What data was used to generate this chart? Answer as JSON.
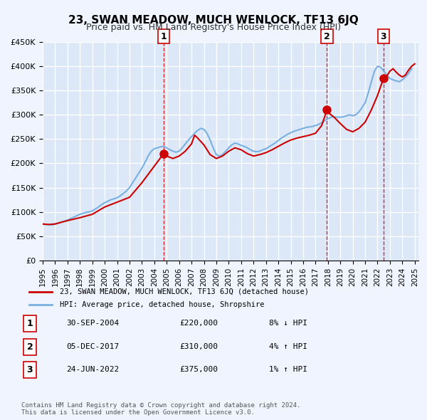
{
  "title": "23, SWAN MEADOW, MUCH WENLOCK, TF13 6JQ",
  "subtitle": "Price paid vs. HM Land Registry's House Price Index (HPI)",
  "hpi_label": "HPI: Average price, detached house, Shropshire",
  "property_label": "23, SWAN MEADOW, MUCH WENLOCK, TF13 6JQ (detached house)",
  "ylabel": "",
  "ylim": [
    0,
    450000
  ],
  "yticks": [
    0,
    50000,
    100000,
    150000,
    200000,
    250000,
    300000,
    350000,
    400000,
    450000
  ],
  "ytick_labels": [
    "£0",
    "£50K",
    "£100K",
    "£150K",
    "£200K",
    "£250K",
    "£300K",
    "£350K",
    "£400K",
    "£450K"
  ],
  "xlim_start": 1995.0,
  "xlim_end": 2025.3,
  "xticks": [
    1995,
    1996,
    1997,
    1998,
    1999,
    2000,
    2001,
    2002,
    2003,
    2004,
    2005,
    2006,
    2007,
    2008,
    2009,
    2010,
    2011,
    2012,
    2013,
    2014,
    2015,
    2016,
    2017,
    2018,
    2019,
    2020,
    2021,
    2022,
    2023,
    2024,
    2025
  ],
  "bg_color": "#f0f4ff",
  "plot_bg_color": "#dce8f8",
  "grid_color": "#ffffff",
  "hpi_color": "#7ab0e0",
  "price_color": "#cc0000",
  "marker_color": "#cc0000",
  "vline_color": "#cc0000",
  "transactions": [
    {
      "num": 1,
      "date": "30-SEP-2004",
      "price": 220000,
      "pct": "8%",
      "direction": "↓",
      "year": 2004.75
    },
    {
      "num": 2,
      "date": "05-DEC-2017",
      "price": 310000,
      "pct": "4%",
      "direction": "↑",
      "year": 2017.92
    },
    {
      "num": 3,
      "date": "24-JUN-2022",
      "price": 375000,
      "pct": "1%",
      "direction": "↑",
      "year": 2022.48
    }
  ],
  "footnote": "Contains HM Land Registry data © Crown copyright and database right 2024.\nThis data is licensed under the Open Government Licence v3.0.",
  "hpi_data": {
    "years": [
      1995.0,
      1995.25,
      1995.5,
      1995.75,
      1996.0,
      1996.25,
      1996.5,
      1996.75,
      1997.0,
      1997.25,
      1997.5,
      1997.75,
      1998.0,
      1998.25,
      1998.5,
      1998.75,
      1999.0,
      1999.25,
      1999.5,
      1999.75,
      2000.0,
      2000.25,
      2000.5,
      2000.75,
      2001.0,
      2001.25,
      2001.5,
      2001.75,
      2002.0,
      2002.25,
      2002.5,
      2002.75,
      2003.0,
      2003.25,
      2003.5,
      2003.75,
      2004.0,
      2004.25,
      2004.5,
      2004.75,
      2005.0,
      2005.25,
      2005.5,
      2005.75,
      2006.0,
      2006.25,
      2006.5,
      2006.75,
      2007.0,
      2007.25,
      2007.5,
      2007.75,
      2008.0,
      2008.25,
      2008.5,
      2008.75,
      2009.0,
      2009.25,
      2009.5,
      2009.75,
      2010.0,
      2010.25,
      2010.5,
      2010.75,
      2011.0,
      2011.25,
      2011.5,
      2011.75,
      2012.0,
      2012.25,
      2012.5,
      2012.75,
      2013.0,
      2013.25,
      2013.5,
      2013.75,
      2014.0,
      2014.25,
      2014.5,
      2014.75,
      2015.0,
      2015.25,
      2015.5,
      2015.75,
      2016.0,
      2016.25,
      2016.5,
      2016.75,
      2017.0,
      2017.25,
      2017.5,
      2017.75,
      2018.0,
      2018.25,
      2018.5,
      2018.75,
      2019.0,
      2019.25,
      2019.5,
      2019.75,
      2020.0,
      2020.25,
      2020.5,
      2020.75,
      2021.0,
      2021.25,
      2021.5,
      2021.75,
      2022.0,
      2022.25,
      2022.5,
      2022.75,
      2023.0,
      2023.25,
      2023.5,
      2023.75,
      2024.0,
      2024.25,
      2024.5,
      2024.75
    ],
    "values": [
      75000,
      74000,
      73500,
      73000,
      75000,
      77000,
      79000,
      81000,
      83000,
      86000,
      89000,
      92000,
      95000,
      97000,
      99000,
      100000,
      102000,
      106000,
      110000,
      115000,
      119000,
      122000,
      125000,
      127000,
      129000,
      133000,
      138000,
      143000,
      150000,
      160000,
      170000,
      180000,
      190000,
      202000,
      215000,
      225000,
      230000,
      232000,
      234000,
      235000,
      232000,
      228000,
      225000,
      223000,
      225000,
      232000,
      240000,
      248000,
      255000,
      262000,
      268000,
      272000,
      270000,
      262000,
      248000,
      232000,
      218000,
      215000,
      218000,
      225000,
      232000,
      238000,
      242000,
      240000,
      237000,
      235000,
      232000,
      228000,
      225000,
      224000,
      225000,
      228000,
      230000,
      234000,
      238000,
      242000,
      247000,
      252000,
      256000,
      260000,
      263000,
      266000,
      268000,
      270000,
      272000,
      274000,
      275000,
      276000,
      278000,
      280000,
      284000,
      288000,
      292000,
      295000,
      296000,
      295000,
      295000,
      296000,
      298000,
      300000,
      298000,
      300000,
      306000,
      315000,
      325000,
      345000,
      368000,
      390000,
      400000,
      398000,
      390000,
      382000,
      375000,
      372000,
      370000,
      368000,
      372000,
      378000,
      385000,
      395000
    ]
  },
  "price_line_data": {
    "segments": [
      {
        "years": [
          1995.0,
          1995.5,
          1996.0,
          1997.0,
          1998.0,
          1999.0,
          2000.0,
          2001.0,
          2002.0,
          2003.0,
          2004.75
        ],
        "values": [
          75000,
          74000,
          75000,
          82000,
          88000,
          95000,
          110000,
          120000,
          130000,
          160000,
          220000
        ]
      },
      {
        "years": [
          2004.75,
          2005.0,
          2005.5,
          2006.0,
          2006.5,
          2007.0,
          2007.25,
          2007.5,
          2008.0,
          2008.5,
          2009.0,
          2009.5,
          2010.0,
          2010.5,
          2011.0,
          2011.5,
          2012.0,
          2012.5,
          2013.0,
          2013.5,
          2014.0,
          2014.5,
          2015.0,
          2015.5,
          2016.0,
          2016.5,
          2017.0,
          2017.5,
          2017.92
        ],
        "values": [
          220000,
          215000,
          210000,
          215000,
          225000,
          240000,
          258000,
          252000,
          238000,
          218000,
          210000,
          215000,
          225000,
          232000,
          228000,
          220000,
          215000,
          218000,
          222000,
          228000,
          235000,
          242000,
          248000,
          252000,
          255000,
          258000,
          262000,
          278000,
          310000
        ]
      },
      {
        "years": [
          2017.92,
          2018.0,
          2018.5,
          2019.0,
          2019.5,
          2020.0,
          2020.5,
          2021.0,
          2021.5,
          2022.0,
          2022.48
        ],
        "values": [
          310000,
          305000,
          295000,
          282000,
          270000,
          265000,
          272000,
          285000,
          310000,
          340000,
          375000
        ]
      },
      {
        "years": [
          2022.48,
          2022.75,
          2023.0,
          2023.25,
          2023.5,
          2023.75,
          2024.0,
          2024.25,
          2024.5,
          2024.75,
          2025.0
        ],
        "values": [
          375000,
          380000,
          390000,
          395000,
          388000,
          382000,
          378000,
          382000,
          392000,
          400000,
          405000
        ]
      }
    ]
  }
}
